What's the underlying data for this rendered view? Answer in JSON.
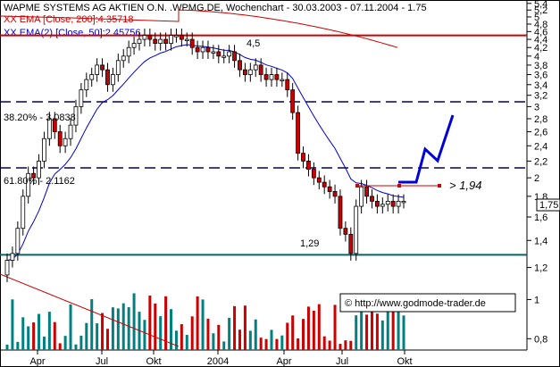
{
  "chart_data": {
    "type": "candlestick",
    "title": "WAPME SYSTEMS AG AKTIEN O.N. .WPMG.DE, Wochenchart - 30.03.2003 - 07.11.2004 - 1.75",
    "legend": [
      {
        "label": "XX EMA [Close, 200]:4.35718",
        "color": "#cc0000"
      },
      {
        "label": "XX EMA(2) [Close, 50]:2.45756",
        "color": "#0000cc"
      }
    ],
    "y_ticks": [
      "5,4",
      "5,2",
      "5",
      "4,8",
      "4,6",
      "4,4",
      "4,2",
      "4",
      "3,8",
      "3,6",
      "3,4",
      "3,2",
      "3",
      "2,8",
      "2,6",
      "2,4",
      "2,2",
      "2",
      "1,8",
      "1,6",
      "1,4",
      "1,2",
      "1",
      "0,8"
    ],
    "current_price_label": "1,75",
    "x_ticks": [
      "Apr",
      "Jul",
      "Okt",
      "2004",
      "Apr",
      "Jul",
      "Okt"
    ],
    "ylim": [
      0.75,
      5.45
    ],
    "horizontal_levels": [
      {
        "value": 4.5,
        "label": "4,5",
        "color": "#cc0000",
        "style": "solid"
      },
      {
        "value": 3.084,
        "label": "38.20% - 3.0838",
        "color": "#000066",
        "style": "dashed"
      },
      {
        "value": 2.116,
        "label": "61.80% - 2.1162",
        "color": "#000066",
        "style": "dashed"
      },
      {
        "value": 1.29,
        "label": "1,29",
        "color": "#006666",
        "style": "solid"
      }
    ],
    "annotations": [
      {
        "text": "> 1,94",
        "color": "#cc0000"
      },
      {
        "text": "© http://www.godmode-trader.de"
      }
    ],
    "weekly_close": [
      1.25,
      1.3,
      1.5,
      1.8,
      2.05,
      2.0,
      2.2,
      2.5,
      2.8,
      2.6,
      2.4,
      2.5,
      2.7,
      3.0,
      3.3,
      3.5,
      3.6,
      3.8,
      3.7,
      3.4,
      3.6,
      3.9,
      4.0,
      4.2,
      4.3,
      4.4,
      4.5,
      4.4,
      4.3,
      4.4,
      4.3,
      4.5,
      4.5,
      4.4,
      4.4,
      4.2,
      4.1,
      4.2,
      4.1,
      4.1,
      4.0,
      4.0,
      4.1,
      3.9,
      3.7,
      3.6,
      3.7,
      3.8,
      3.6,
      3.5,
      3.6,
      3.5,
      3.5,
      3.3,
      2.9,
      2.3,
      2.2,
      2.1,
      2.0,
      1.95,
      1.9,
      1.85,
      1.8,
      1.5,
      1.45,
      1.3,
      1.7,
      1.9,
      1.8,
      1.75,
      1.7,
      1.72,
      1.75,
      1.7,
      1.75,
      1.75
    ]
  }
}
